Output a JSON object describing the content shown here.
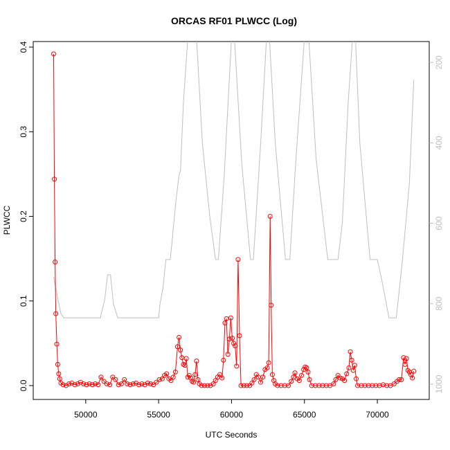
{
  "chart_data": {
    "type": "line",
    "title": "ORCAS RF01 PLWCC (Log)",
    "xlabel": "UTC Seconds",
    "ylabel": "PLWCC",
    "xlim": [
      46400,
      73560
    ],
    "xticks": [
      50000,
      55000,
      60000,
      65000,
      70000
    ],
    "ylim": [
      -0.0164,
      0.4066
    ],
    "yticks": [
      0.0,
      0.1,
      0.2,
      0.3,
      0.4
    ],
    "y2lim": [
      1038,
      148
    ],
    "y2ticks": [
      200,
      400,
      600,
      800,
      1000
    ],
    "series": [
      {
        "color": "#bebebe",
        "axis": "y2",
        "x": [
          47800,
          48100,
          48300,
          48500,
          51000,
          51300,
          51500,
          51700,
          51900,
          52200,
          55000,
          55100,
          55300,
          55500,
          55800,
          56200,
          56400,
          56500,
          56700,
          57000,
          57600,
          58000,
          58500,
          58900,
          59100,
          59500,
          60000,
          60200,
          60700,
          61300,
          61500,
          62000,
          62400,
          62600,
          63000,
          63700,
          64000,
          64400,
          65000,
          65300,
          65800,
          66600,
          67300,
          67600,
          68000,
          68300,
          68500,
          68800,
          69500,
          70000,
          70300,
          70800,
          71300,
          71700,
          72200,
          72500
        ],
        "values": [
          733,
          790,
          825,
          835,
          835,
          790,
          728,
          728,
          800,
          835,
          835,
          800,
          760,
          690,
          690,
          540,
          480,
          470,
          300,
          140,
          140,
          400,
          580,
          690,
          690,
          480,
          140,
          140,
          450,
          690,
          690,
          400,
          140,
          140,
          400,
          690,
          690,
          450,
          140,
          140,
          440,
          690,
          690,
          600,
          300,
          140,
          140,
          400,
          690,
          690,
          740,
          835,
          835,
          700,
          500,
          243
        ]
      },
      {
        "color": "#ff0000",
        "x": [
          47800,
          47850,
          47900,
          47950,
          48020,
          48080,
          48150,
          48220,
          48300,
          48450,
          48650,
          48850,
          49050,
          49250,
          49450,
          49650,
          49850,
          50050,
          50250,
          50450,
          50650,
          50850,
          51050,
          51250,
          51450,
          51650,
          51850,
          52050,
          52250,
          52450,
          52650,
          52850,
          53050,
          53250,
          53450,
          53650,
          53850,
          54050,
          54250,
          54450,
          54650,
          54850,
          55050,
          55250,
          55400,
          55550,
          55700,
          55850,
          56000,
          56150,
          56300,
          56400,
          56500,
          56600,
          56700,
          56800,
          56900,
          57000,
          57100,
          57200,
          57300,
          57400,
          57500,
          57600,
          57700,
          57800,
          57950,
          58150,
          58350,
          58550,
          58750,
          58900,
          59050,
          59200,
          59350,
          59450,
          59550,
          59650,
          59750,
          59850,
          59950,
          60050,
          60150,
          60250,
          60350,
          60450,
          60550,
          60650,
          60850,
          61050,
          61250,
          61400,
          61550,
          61700,
          61850,
          62000,
          62150,
          62300,
          62450,
          62550,
          62650,
          62720,
          62800,
          62900,
          63000,
          63150,
          63400,
          63650,
          63900,
          64100,
          64250,
          64350,
          64500,
          64650,
          64800,
          64950,
          65050,
          65150,
          65250,
          65350,
          65500,
          65750,
          66000,
          66250,
          66500,
          66750,
          67000,
          67150,
          67300,
          67450,
          67600,
          67750,
          67900,
          68050,
          68150,
          68250,
          68350,
          68450,
          68550,
          68650,
          68900,
          69150,
          69400,
          69650,
          69900,
          70150,
          70400,
          70650,
          70900,
          71150,
          71350,
          71500,
          71650,
          71800,
          71900,
          72000,
          72100,
          72200,
          72300,
          72400,
          72500
        ],
        "values": [
          0.392,
          0.244,
          0.146,
          0.085,
          0.049,
          0.025,
          0.014,
          0.008,
          0.003,
          0.001,
          0,
          0.002,
          0.003,
          0.001,
          0.002,
          0.004,
          0.002,
          0.001,
          0.002,
          0.001,
          0.002,
          0.001,
          0.01,
          0.005,
          0.002,
          0.001,
          0.01,
          0.007,
          0.001,
          0.002,
          0.007,
          0.002,
          0.001,
          0.002,
          0.003,
          0.001,
          0.002,
          0.001,
          0.003,
          0.002,
          0.001,
          0.004,
          0.007,
          0.008,
          0.012,
          0.014,
          0.008,
          0.006,
          0.01,
          0.016,
          0.046,
          0.057,
          0.042,
          0.033,
          0.025,
          0.024,
          0.032,
          0.01,
          0.012,
          0.009,
          0.005,
          0.004,
          0.013,
          0.029,
          0.007,
          0.002,
          0,
          0,
          0,
          0,
          0.002,
          0.006,
          0.01,
          0.013,
          0.009,
          0.03,
          0.074,
          0.079,
          0.037,
          0.055,
          0.08,
          0.056,
          0.05,
          0.047,
          0.023,
          0.149,
          0.059,
          0,
          0,
          0,
          0,
          0.003,
          0.007,
          0.013,
          0.01,
          0.004,
          0.01,
          0.019,
          0.021,
          0.027,
          0.2,
          0.095,
          0.013,
          0.006,
          0.002,
          0,
          0,
          0,
          0,
          0.005,
          0.01,
          0.015,
          0.008,
          0.006,
          0.012,
          0.019,
          0.022,
          0.021,
          0.016,
          0.007,
          0,
          0,
          0,
          0,
          0,
          0,
          0.002,
          0.007,
          0.012,
          0.009,
          0.008,
          0.006,
          0.014,
          0.021,
          0.04,
          0.03,
          0.018,
          0.024,
          0.008,
          0,
          0,
          0,
          0,
          0,
          0,
          0,
          0.001,
          0,
          0,
          0.002,
          0.005,
          0.007,
          0.007,
          0.033,
          0.025,
          0.032,
          0.018,
          0.016,
          0.013,
          0.009,
          0.017
        ]
      }
    ]
  }
}
